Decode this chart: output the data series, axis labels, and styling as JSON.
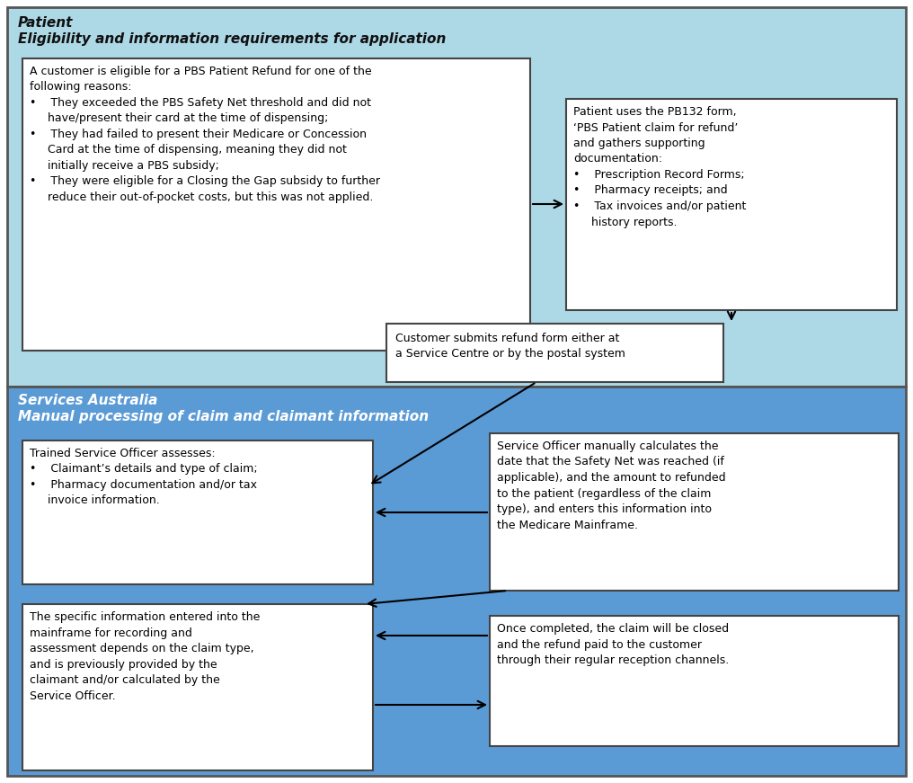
{
  "bg_patient": "#add8e6",
  "bg_services": "#5b9bd5",
  "box1_text": "A customer is eligible for a PBS Patient Refund for one of the\nfollowing reasons:\n•    They exceeded the PBS Safety Net threshold and did not\n     have/present their card at the time of dispensing;\n•    They had failed to present their Medicare or Concession\n     Card at the time of dispensing, meaning they did not\n     initially receive a PBS subsidy;\n•    They were eligible for a Closing the Gap subsidy to further\n     reduce their out-of-pocket costs, but this was not applied.",
  "box2_text": "Patient uses the PB132 form,\n‘PBS Patient claim for refund’\nand gathers supporting\ndocumentation:\n•    Prescription Record Forms;\n•    Pharmacy receipts; and\n•    Tax invoices and/or patient\n     history reports.",
  "box3_text": "Customer submits refund form either at\na Service Centre or by the postal system",
  "box4_text": "Trained Service Officer assesses:\n•    Claimant’s details and type of claim;\n•    Pharmacy documentation and/or tax\n     invoice information.",
  "box5_text": "Service Officer manually calculates the\ndate that the Safety Net was reached (if\napplicable), and the amount to refunded\nto the patient (regardless of the claim\ntype), and enters this information into\nthe Medicare Mainframe.",
  "box6_text": "The specific information entered into the\nmainframe for recording and\nassessment depends on the claim type,\nand is previously provided by the\nclaimant and/or calculated by the\nService Officer.",
  "box7_text": "Once completed, the claim will be closed\nand the refund paid to the customer\nthrough their regular reception channels."
}
